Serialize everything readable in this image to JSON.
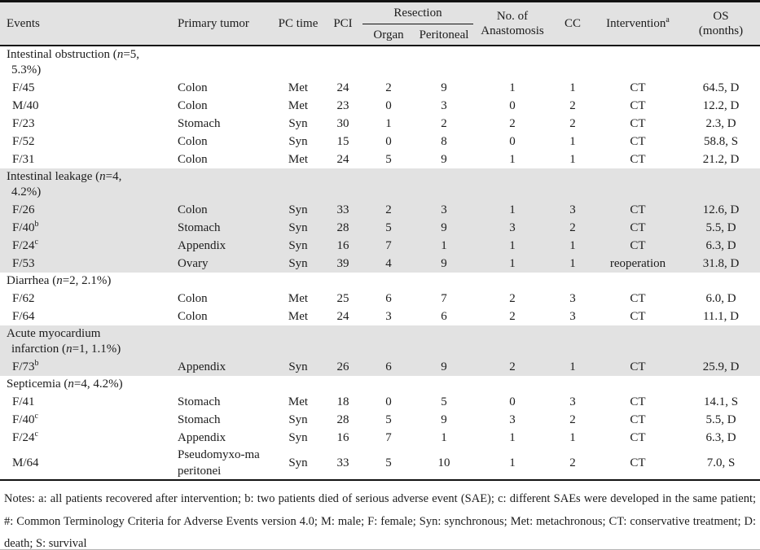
{
  "table": {
    "header": {
      "events": "Events",
      "primary_tumor": "Primary tumor",
      "pc_time": "PC time",
      "pci": "PCI",
      "resection": "Resection",
      "organ": "Organ",
      "peritoneal": "Peritoneal",
      "anastomosis_line1": "No. of",
      "anastomosis_line2": "Anastomosis",
      "cc": "CC",
      "intervention": "Intervention",
      "intervention_sup": "a",
      "os_line1": "OS",
      "os_line2": "(months)"
    },
    "colors": {
      "shaded_row_bg": "#e2e2e2",
      "header_bg": "#e2e2e2",
      "rule_color": "#121212"
    },
    "sections": [
      {
        "label": {
          "pre": "Intestinal obstruction (",
          "n": "n",
          "post": "=5, 5.3%)"
        },
        "shaded": false,
        "rows": [
          {
            "event": "F/45",
            "event_sup": "",
            "cells": [
              "Colon",
              "Met",
              "24",
              "2",
              "9",
              "1",
              "1",
              "CT",
              "64.5, D"
            ]
          },
          {
            "event": "M/40",
            "event_sup": "",
            "cells": [
              "Colon",
              "Met",
              "23",
              "0",
              "3",
              "0",
              "2",
              "CT",
              "12.2, D"
            ]
          },
          {
            "event": "F/23",
            "event_sup": "",
            "cells": [
              "Stomach",
              "Syn",
              "30",
              "1",
              "2",
              "2",
              "2",
              "CT",
              "2.3, D"
            ]
          },
          {
            "event": "F/52",
            "event_sup": "",
            "cells": [
              "Colon",
              "Syn",
              "15",
              "0",
              "8",
              "0",
              "1",
              "CT",
              "58.8, S"
            ]
          },
          {
            "event": "F/31",
            "event_sup": "",
            "cells": [
              "Colon",
              "Met",
              "24",
              "5",
              "9",
              "1",
              "1",
              "CT",
              "21.2, D"
            ]
          }
        ]
      },
      {
        "label": {
          "pre": "Intestinal leakage (",
          "n": "n",
          "post": "=4, 4.2%)"
        },
        "shaded": true,
        "rows": [
          {
            "event": "F/26",
            "event_sup": "",
            "cells": [
              "Colon",
              "Syn",
              "33",
              "2",
              "3",
              "1",
              "3",
              "CT",
              "12.6, D"
            ]
          },
          {
            "event": "F/40",
            "event_sup": "b",
            "cells": [
              "Stomach",
              "Syn",
              "28",
              "5",
              "9",
              "3",
              "2",
              "CT",
              "5.5, D"
            ]
          },
          {
            "event": "F/24",
            "event_sup": "c",
            "cells": [
              "Appendix",
              "Syn",
              "16",
              "7",
              "1",
              "1",
              "1",
              "CT",
              "6.3, D"
            ]
          },
          {
            "event": "F/53",
            "event_sup": "",
            "cells": [
              "Ovary",
              "Syn",
              "39",
              "4",
              "9",
              "1",
              "1",
              "reoperation",
              "31.8, D"
            ]
          }
        ]
      },
      {
        "label": {
          "pre": "Diarrhea (",
          "n": "n",
          "post": "=2, 2.1%)"
        },
        "shaded": false,
        "rows": [
          {
            "event": "F/62",
            "event_sup": "",
            "cells": [
              "Colon",
              "Met",
              "25",
              "6",
              "7",
              "2",
              "3",
              "CT",
              "6.0, D"
            ]
          },
          {
            "event": "F/64",
            "event_sup": "",
            "cells": [
              "Colon",
              "Met",
              "24",
              "3",
              "6",
              "2",
              "3",
              "CT",
              "11.1, D"
            ]
          }
        ]
      },
      {
        "label": {
          "pre": "Acute myocardium infarction (",
          "n": "n",
          "post": "=1, 1.1%)"
        },
        "shaded": true,
        "rows": [
          {
            "event": "F/73",
            "event_sup": "b",
            "cells": [
              "Appendix",
              "Syn",
              "26",
              "6",
              "9",
              "2",
              "1",
              "CT",
              "25.9, D"
            ]
          }
        ]
      },
      {
        "label": {
          "pre": "Septicemia (",
          "n": "n",
          "post": "=4, 4.2%)"
        },
        "shaded": false,
        "rows": [
          {
            "event": "F/41",
            "event_sup": "",
            "cells": [
              "Stomach",
              "Met",
              "18",
              "0",
              "5",
              "0",
              "3",
              "CT",
              "14.1, S"
            ]
          },
          {
            "event": "F/40",
            "event_sup": "c",
            "cells": [
              "Stomach",
              "Syn",
              "28",
              "5",
              "9",
              "3",
              "2",
              "CT",
              "5.5, D"
            ]
          },
          {
            "event": "F/24",
            "event_sup": "c",
            "cells": [
              "Appendix",
              "Syn",
              "16",
              "7",
              "1",
              "1",
              "1",
              "CT",
              "6.3, D"
            ]
          },
          {
            "event": "M/64",
            "event_sup": "",
            "cells": [
              "Pseudomyxo-ma peritonei",
              "Syn",
              "33",
              "5",
              "10",
              "1",
              "2",
              "CT",
              "7.0, S"
            ]
          }
        ]
      }
    ]
  },
  "notes": "Notes: a: all patients recovered after intervention; b: two patients died of serious adverse event (SAE); c: different SAEs were developed in the same patient; #: Common Terminology Criteria for Adverse Events version 4.0; M: male; F: female; Syn: synchronous; Met: metachronous; CT: conservative treatment; D: death; S: survival"
}
